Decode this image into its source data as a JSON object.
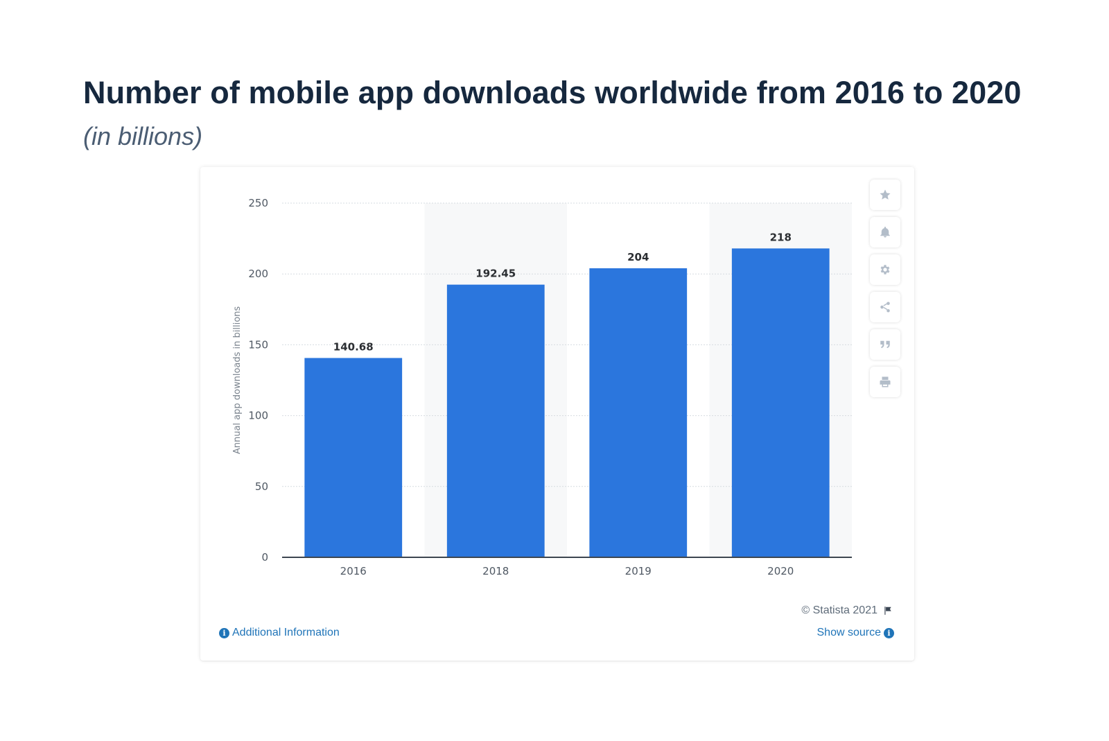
{
  "header": {
    "title": "Number of mobile app downloads worldwide from 2016 to 2020",
    "subtitle": "(in billions)"
  },
  "chart_data": {
    "type": "bar",
    "categories": [
      "2016",
      "2018",
      "2019",
      "2020"
    ],
    "values": [
      140.68,
      192.45,
      204,
      218
    ],
    "value_labels": [
      "140.68",
      "192.45",
      "204",
      "218"
    ],
    "ylabel": "Annual app downloads in billions",
    "ylim": [
      0,
      250
    ],
    "yticks": [
      0,
      50,
      100,
      150,
      200,
      250
    ],
    "grid": true,
    "bar_color": "#2b76dd",
    "alternate_band_color": "#f7f8f9"
  },
  "toolbar": {
    "buttons": [
      {
        "name": "favorite-button",
        "icon": "star-icon"
      },
      {
        "name": "alert-button",
        "icon": "bell-icon"
      },
      {
        "name": "settings-button",
        "icon": "gear-icon"
      },
      {
        "name": "share-button",
        "icon": "share-icon"
      },
      {
        "name": "cite-button",
        "icon": "quote-icon"
      },
      {
        "name": "print-button",
        "icon": "print-icon"
      }
    ]
  },
  "footer": {
    "copyright": "© Statista 2021",
    "additional_info": "Additional Information",
    "show_source": "Show source",
    "info_glyph": "i"
  }
}
